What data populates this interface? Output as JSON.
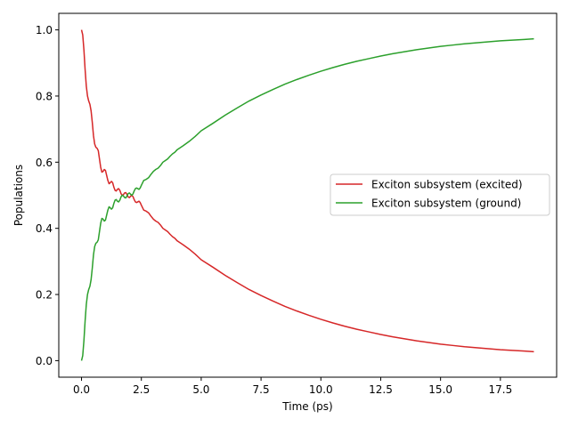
{
  "chart_data": {
    "type": "line",
    "xlabel": "Time (ps)",
    "ylabel": "Populations",
    "xlim": [
      -0.95,
      19.85
    ],
    "ylim": [
      -0.05,
      1.05
    ],
    "xticks": [
      0.0,
      2.5,
      5.0,
      7.5,
      10.0,
      12.5,
      15.0,
      17.5
    ],
    "xtick_labels": [
      "0.0",
      "2.5",
      "5.0",
      "7.5",
      "10.0",
      "12.5",
      "15.0",
      "17.5"
    ],
    "yticks": [
      0.0,
      0.2,
      0.4,
      0.6,
      0.8,
      1.0
    ],
    "ytick_labels": [
      "0.0",
      "0.2",
      "0.4",
      "0.6",
      "0.8",
      "1.0"
    ],
    "grid": false,
    "legend_position": "center-right",
    "series": [
      {
        "name": "Exciton subsystem (excited)",
        "color": "#d62728",
        "x": [
          0.0,
          0.05,
          0.1,
          0.15,
          0.2,
          0.25,
          0.3,
          0.35,
          0.4,
          0.45,
          0.5,
          0.55,
          0.6,
          0.65,
          0.7,
          0.75,
          0.8,
          0.85,
          0.9,
          0.95,
          1.0,
          1.05,
          1.1,
          1.15,
          1.2,
          1.25,
          1.3,
          1.35,
          1.4,
          1.45,
          1.5,
          1.55,
          1.6,
          1.65,
          1.7,
          1.75,
          1.8,
          1.85,
          1.9,
          1.95,
          2.0,
          2.05,
          2.1,
          2.15,
          2.2,
          2.25,
          2.3,
          2.35,
          2.4,
          2.45,
          2.5,
          2.6,
          2.7,
          2.8,
          2.9,
          3.0,
          3.1,
          3.2,
          3.3,
          3.4,
          3.5,
          3.6,
          3.7,
          3.8,
          3.9,
          4.0,
          4.25,
          4.5,
          4.75,
          5.0,
          5.5,
          6.0,
          6.5,
          7.0,
          7.5,
          8.0,
          8.5,
          9.0,
          9.5,
          10.0,
          10.5,
          11.0,
          11.5,
          12.0,
          12.5,
          13.0,
          13.5,
          14.0,
          14.5,
          15.0,
          15.5,
          16.0,
          16.5,
          17.0,
          17.5,
          18.0,
          18.5,
          18.9
        ],
        "y": [
          1.0,
          0.985,
          0.94,
          0.88,
          0.83,
          0.8,
          0.785,
          0.775,
          0.755,
          0.72,
          0.68,
          0.655,
          0.645,
          0.642,
          0.635,
          0.61,
          0.585,
          0.57,
          0.572,
          0.578,
          0.575,
          0.56,
          0.545,
          0.535,
          0.538,
          0.542,
          0.538,
          0.525,
          0.515,
          0.513,
          0.518,
          0.52,
          0.515,
          0.505,
          0.5,
          0.502,
          0.507,
          0.508,
          0.502,
          0.495,
          0.493,
          0.497,
          0.5,
          0.496,
          0.487,
          0.48,
          0.478,
          0.48,
          0.482,
          0.478,
          0.47,
          0.455,
          0.452,
          0.447,
          0.437,
          0.428,
          0.422,
          0.418,
          0.41,
          0.4,
          0.395,
          0.39,
          0.382,
          0.375,
          0.37,
          0.362,
          0.35,
          0.337,
          0.322,
          0.305,
          0.282,
          0.258,
          0.236,
          0.215,
          0.197,
          0.18,
          0.164,
          0.15,
          0.137,
          0.125,
          0.114,
          0.104,
          0.095,
          0.087,
          0.079,
          0.072,
          0.066,
          0.06,
          0.055,
          0.05,
          0.046,
          0.042,
          0.039,
          0.036,
          0.033,
          0.031,
          0.029,
          0.027
        ]
      },
      {
        "name": "Exciton subsystem (ground)",
        "color": "#2ca02c",
        "x": [
          0.0,
          0.05,
          0.1,
          0.15,
          0.2,
          0.25,
          0.3,
          0.35,
          0.4,
          0.45,
          0.5,
          0.55,
          0.6,
          0.65,
          0.7,
          0.75,
          0.8,
          0.85,
          0.9,
          0.95,
          1.0,
          1.05,
          1.1,
          1.15,
          1.2,
          1.25,
          1.3,
          1.35,
          1.4,
          1.45,
          1.5,
          1.55,
          1.6,
          1.65,
          1.7,
          1.75,
          1.8,
          1.85,
          1.9,
          1.95,
          2.0,
          2.05,
          2.1,
          2.15,
          2.2,
          2.25,
          2.3,
          2.35,
          2.4,
          2.45,
          2.5,
          2.6,
          2.7,
          2.8,
          2.9,
          3.0,
          3.1,
          3.2,
          3.3,
          3.4,
          3.5,
          3.6,
          3.7,
          3.8,
          3.9,
          4.0,
          4.25,
          4.5,
          4.75,
          5.0,
          5.5,
          6.0,
          6.5,
          7.0,
          7.5,
          8.0,
          8.5,
          9.0,
          9.5,
          10.0,
          10.5,
          11.0,
          11.5,
          12.0,
          12.5,
          13.0,
          13.5,
          14.0,
          14.5,
          15.0,
          15.5,
          16.0,
          16.5,
          17.0,
          17.5,
          18.0,
          18.5,
          18.9
        ],
        "y": [
          0.0,
          0.015,
          0.06,
          0.12,
          0.17,
          0.2,
          0.215,
          0.225,
          0.245,
          0.28,
          0.32,
          0.345,
          0.355,
          0.358,
          0.365,
          0.39,
          0.415,
          0.43,
          0.428,
          0.422,
          0.425,
          0.44,
          0.455,
          0.465,
          0.462,
          0.458,
          0.462,
          0.475,
          0.485,
          0.487,
          0.482,
          0.48,
          0.485,
          0.495,
          0.5,
          0.498,
          0.493,
          0.492,
          0.498,
          0.505,
          0.507,
          0.503,
          0.5,
          0.504,
          0.513,
          0.52,
          0.522,
          0.52,
          0.518,
          0.522,
          0.53,
          0.545,
          0.548,
          0.553,
          0.563,
          0.572,
          0.578,
          0.582,
          0.59,
          0.6,
          0.605,
          0.61,
          0.618,
          0.625,
          0.63,
          0.638,
          0.65,
          0.663,
          0.678,
          0.695,
          0.718,
          0.742,
          0.764,
          0.785,
          0.803,
          0.82,
          0.836,
          0.85,
          0.863,
          0.875,
          0.886,
          0.896,
          0.905,
          0.913,
          0.921,
          0.928,
          0.934,
          0.94,
          0.945,
          0.95,
          0.954,
          0.958,
          0.961,
          0.964,
          0.967,
          0.969,
          0.971,
          0.973
        ]
      }
    ]
  }
}
